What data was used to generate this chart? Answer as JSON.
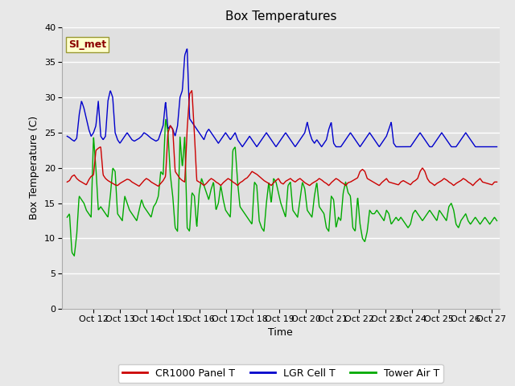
{
  "title": "Box Temperatures",
  "xlabel": "Time",
  "ylabel": "Box Temperature (C)",
  "ylim": [
    0,
    40
  ],
  "yticks": [
    0,
    5,
    10,
    15,
    20,
    25,
    30,
    35,
    40
  ],
  "legend_labels": [
    "CR1000 Panel T",
    "LGR Cell T",
    "Tower Air T"
  ],
  "line_colors": [
    "#cc0000",
    "#0000cc",
    "#00aa00"
  ],
  "annotation_text": "SI_met",
  "annotation_color": "#8b0000",
  "annotation_bg": "#ffffcc",
  "annotation_edge": "#999933",
  "fig_facecolor": "#e8e8e8",
  "axes_facecolor": "#e0e0e0",
  "grid_color": "#ffffff",
  "title_fontsize": 11,
  "label_fontsize": 9,
  "tick_fontsize": 8,
  "x_start": 11.0,
  "x_end": 27.2,
  "xlim_left": 10.8,
  "xlim_right": 27.3,
  "cr1000_base": [
    18.0,
    18.2,
    18.8,
    19.0,
    18.5,
    18.2,
    18.0,
    17.8,
    17.6,
    18.3,
    18.8,
    19.0,
    22.5,
    22.8,
    23.0,
    19.0,
    18.5,
    18.2,
    18.0,
    17.8,
    17.6,
    17.5,
    17.8,
    18.0,
    18.2,
    18.4,
    18.3,
    18.0,
    17.8,
    17.6,
    17.4,
    17.8,
    18.2,
    18.5,
    18.3,
    18.0,
    17.8,
    17.6,
    17.4,
    17.8,
    18.2,
    18.8,
    25.0,
    26.0,
    25.5,
    19.5,
    19.0,
    18.5,
    18.2,
    18.0,
    25.5,
    30.5,
    31.0,
    25.0,
    18.2,
    18.0,
    17.8,
    17.5,
    17.8,
    18.2,
    18.5,
    18.3,
    18.0,
    17.8,
    17.5,
    17.9,
    18.2,
    18.5,
    18.3,
    18.0,
    17.8,
    17.5,
    17.9,
    18.1,
    18.4,
    18.6,
    19.0,
    19.5,
    19.3,
    19.1,
    18.8,
    18.5,
    18.2,
    18.0,
    17.8,
    17.5,
    17.9,
    18.2,
    18.5,
    17.9,
    17.7,
    18.1,
    18.3,
    18.5,
    18.2,
    18.0,
    18.3,
    18.5,
    18.2,
    17.9,
    17.7,
    17.5,
    17.8,
    18.0,
    18.2,
    18.5,
    18.3,
    18.0,
    17.8,
    17.5,
    17.9,
    18.2,
    18.5,
    18.3,
    18.0,
    17.8,
    17.5,
    17.9,
    18.0,
    18.2,
    18.4,
    18.6,
    19.5,
    19.8,
    19.5,
    18.5,
    18.3,
    18.1,
    17.9,
    17.7,
    17.5,
    17.9,
    18.2,
    18.5,
    18.0,
    17.9,
    17.8,
    17.7,
    17.6,
    18.0,
    18.2,
    18.0,
    17.8,
    17.6,
    18.0,
    18.2,
    18.5,
    19.5,
    20.0,
    19.5,
    18.5,
    18.0,
    17.8,
    17.5,
    17.8,
    18.0,
    18.2,
    18.5,
    18.3,
    18.0,
    17.8,
    17.5,
    17.8,
    18.0,
    18.2,
    18.5,
    18.3,
    18.0,
    17.8,
    17.5,
    17.9,
    18.2,
    18.5,
    18.0,
    17.9,
    17.8,
    17.7,
    17.6,
    18.0,
    18.0
  ],
  "lgr_base": [
    24.5,
    24.3,
    24.0,
    23.8,
    24.2,
    27.5,
    29.5,
    28.5,
    27.0,
    25.5,
    24.5,
    25.0,
    26.0,
    29.5,
    24.5,
    24.0,
    24.5,
    29.5,
    31.0,
    30.0,
    25.0,
    24.0,
    23.5,
    24.0,
    24.5,
    25.0,
    24.5,
    24.0,
    23.8,
    24.0,
    24.2,
    24.5,
    25.0,
    24.8,
    24.5,
    24.2,
    24.0,
    23.8,
    24.0,
    25.0,
    26.0,
    29.5,
    25.5,
    26.0,
    25.5,
    24.5,
    26.0,
    30.0,
    31.0,
    36.0,
    37.0,
    27.0,
    26.5,
    26.0,
    25.5,
    25.0,
    24.5,
    24.0,
    25.0,
    25.5,
    25.0,
    24.5,
    24.0,
    23.5,
    24.0,
    24.5,
    25.0,
    24.5,
    24.0,
    24.5,
    25.0,
    24.0,
    23.5,
    23.0,
    23.5,
    24.0,
    24.5,
    24.0,
    23.5,
    23.0,
    23.5,
    24.0,
    24.5,
    25.0,
    24.5,
    24.0,
    23.5,
    23.0,
    23.5,
    24.0,
    24.5,
    25.0,
    24.5,
    24.0,
    23.5,
    23.0,
    23.5,
    24.0,
    24.5,
    25.0,
    26.5,
    25.0,
    24.0,
    23.5,
    24.0,
    23.5,
    23.0,
    23.5,
    24.0,
    25.5,
    26.5,
    23.5,
    23.0,
    23.0,
    23.0,
    23.5,
    24.0,
    24.5,
    25.0,
    24.5,
    24.0,
    23.5,
    23.0,
    23.5,
    24.0,
    24.5,
    25.0,
    24.5,
    24.0,
    23.5,
    23.0,
    23.5,
    24.0,
    24.5,
    25.5,
    26.5,
    23.5,
    23.0,
    23.0,
    23.0,
    23.0,
    23.0,
    23.0,
    23.0,
    23.5,
    24.0,
    24.5,
    25.0,
    24.5,
    24.0,
    23.5,
    23.0,
    23.0,
    23.5,
    24.0,
    24.5,
    25.0,
    24.5,
    24.0,
    23.5,
    23.0,
    23.0,
    23.0,
    23.5,
    24.0,
    24.5,
    25.0,
    24.5,
    24.0,
    23.5,
    23.0,
    23.0,
    23.0,
    23.0,
    23.0,
    23.0,
    23.0,
    23.0,
    23.0,
    23.0
  ],
  "tower_base": [
    13.0,
    13.5,
    8.0,
    7.5,
    10.5,
    16.0,
    15.5,
    15.0,
    14.0,
    13.5,
    13.0,
    24.5,
    20.0,
    14.0,
    14.5,
    14.0,
    13.5,
    13.0,
    16.0,
    20.0,
    19.5,
    13.5,
    13.0,
    12.5,
    16.0,
    15.0,
    14.0,
    13.5,
    13.0,
    12.5,
    14.0,
    15.5,
    14.5,
    14.0,
    13.5,
    13.0,
    14.5,
    15.0,
    16.0,
    19.5,
    19.0,
    27.0,
    25.0,
    19.0,
    16.0,
    11.5,
    11.0,
    24.5,
    20.0,
    24.5,
    11.5,
    11.0,
    16.5,
    16.0,
    11.5,
    16.5,
    18.5,
    17.5,
    16.5,
    15.5,
    17.0,
    18.0,
    14.0,
    15.0,
    17.5,
    15.5,
    14.0,
    13.5,
    13.0,
    22.5,
    23.0,
    18.0,
    14.5,
    14.0,
    13.5,
    13.0,
    12.5,
    12.0,
    18.0,
    17.5,
    12.5,
    11.5,
    11.0,
    15.0,
    18.0,
    15.0,
    18.5,
    18.0,
    16.5,
    15.0,
    14.0,
    13.0,
    17.5,
    18.0,
    14.0,
    13.5,
    13.0,
    15.5,
    18.0,
    17.0,
    14.0,
    13.5,
    13.0,
    16.0,
    18.0,
    14.5,
    14.0,
    13.5,
    11.5,
    11.0,
    16.0,
    15.5,
    11.5,
    13.0,
    12.5,
    16.5,
    18.0,
    16.5,
    16.0,
    11.5,
    11.0,
    16.0,
    12.0,
    10.0,
    9.5,
    11.0,
    14.0,
    13.5,
    13.5,
    14.0,
    13.5,
    13.0,
    12.5,
    14.0,
    13.5,
    12.0,
    12.5,
    13.0,
    12.5,
    13.0,
    12.5,
    12.0,
    11.5,
    12.0,
    13.5,
    14.0,
    13.5,
    13.0,
    12.5,
    13.0,
    13.5,
    14.0,
    13.5,
    13.0,
    12.5,
    14.0,
    13.5,
    13.0,
    12.5,
    14.5,
    15.0,
    14.0,
    12.0,
    11.5,
    12.5,
    13.0,
    13.5,
    12.5,
    12.0,
    12.5,
    13.0,
    12.5,
    12.0,
    12.5,
    13.0,
    12.5,
    12.0,
    12.5,
    13.0,
    12.5
  ]
}
